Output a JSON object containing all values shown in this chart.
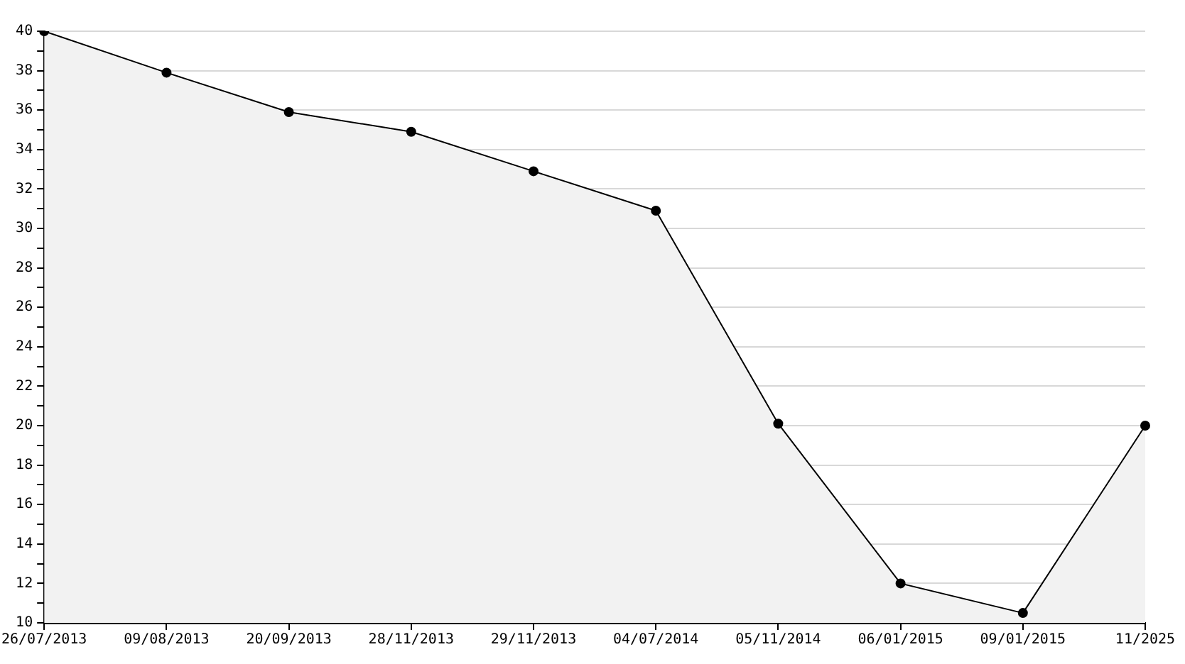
{
  "chart_data": {
    "type": "area",
    "categories": [
      "26/07/2013",
      "09/08/2013",
      "20/09/2013",
      "28/11/2013",
      "29/11/2013",
      "04/07/2014",
      "05/11/2014",
      "06/01/2015",
      "09/01/2015",
      "11/2025"
    ],
    "series": [
      {
        "color": "#000000",
        "values": [
          40,
          37.9,
          35.9,
          34.9,
          32.9,
          30.9,
          20.1,
          12,
          10.5,
          20
        ]
      }
    ],
    "ylim": [
      10,
      40
    ],
    "yticks": [
      10,
      {
        "value": 11,
        "label": null
      },
      12,
      {
        "value": 13,
        "label": null
      },
      14,
      {
        "value": 15,
        "label": null
      },
      16,
      {
        "value": 17,
        "label": null
      },
      18,
      {
        "value": 19,
        "label": null
      },
      20,
      {
        "value": 21,
        "label": null
      },
      22,
      {
        "value": 23,
        "label": null
      },
      24,
      {
        "value": 25,
        "label": null
      },
      26,
      {
        "value": 27,
        "label": null
      },
      28,
      {
        "value": 29,
        "label": null
      },
      30,
      {
        "value": 31,
        "label": null
      },
      32,
      {
        "value": 33,
        "label": null
      },
      34,
      {
        "value": 35,
        "label": null
      },
      36,
      {
        "value": 37,
        "label": null
      },
      38,
      {
        "value": 39,
        "label": null
      },
      40
    ],
    "grid": "y",
    "legend": false,
    "marker": "circle",
    "line_style": "solid"
  }
}
